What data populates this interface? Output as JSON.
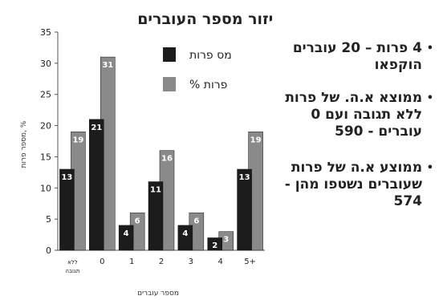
{
  "chart_data": {
    "type": "bar",
    "title": "פיזור מספר העוברים",
    "xlabel": "מספר עוברים",
    "ylabel": "מספר פרות, %",
    "ylim": [
      0,
      35
    ],
    "yticks": [
      "0",
      "5",
      "10",
      "15",
      "20",
      "25",
      "30",
      "35"
    ],
    "categories": [
      "ללא תגובה",
      "0",
      "1",
      "2",
      "3",
      "4",
      "5+"
    ],
    "legend_position": "top-right",
    "series": [
      {
        "name": "מס פרות",
        "color": "#1c1c1c",
        "values": [
          13,
          21,
          4,
          11,
          4,
          2,
          13
        ],
        "labels": [
          "13",
          "21",
          "4",
          "11",
          "4",
          "2",
          "13"
        ]
      },
      {
        "name": "% פרות",
        "color": "#8a8a8a",
        "values": [
          19,
          31,
          6,
          16,
          6,
          3,
          19
        ],
        "labels": [
          "19",
          "31",
          "6",
          "16",
          "6",
          "3",
          "19"
        ]
      }
    ]
  },
  "bullets": [
    "4 פרות – 20 עוברים הוקפאו",
    "ממוצא א.ה. של פרות ללא תגובה ועם 0 עוברים - 590",
    "ממוצע א.ה של פרות שעוברים נשטפו מהן - 574"
  ]
}
